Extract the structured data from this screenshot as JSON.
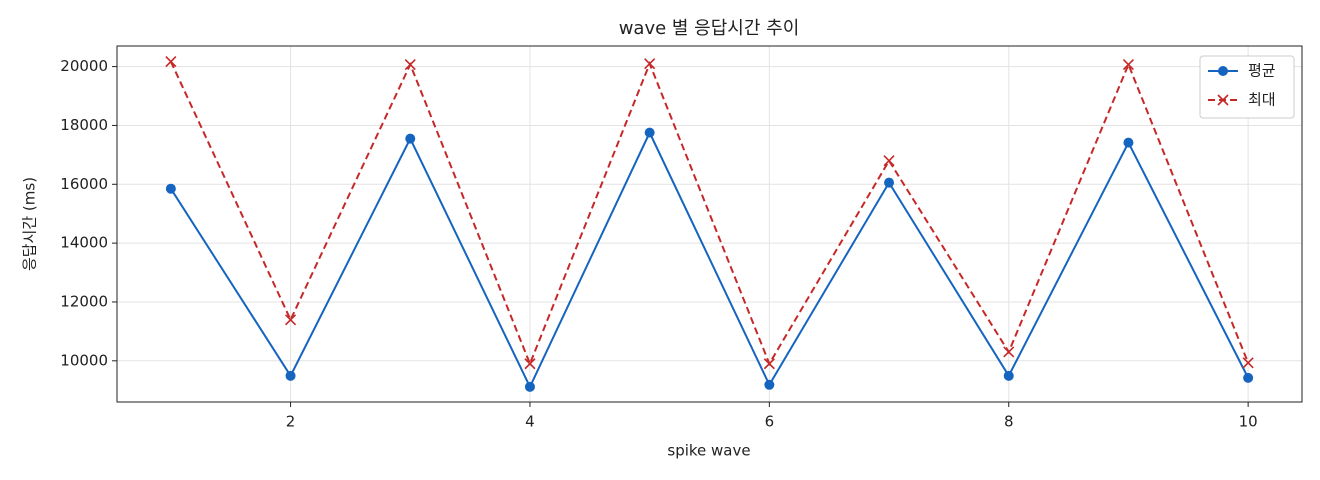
{
  "chart_data": {
    "type": "line",
    "title": "wave 별 응답시간 추이",
    "x_label": "spike wave",
    "y_label": "응답시간 (ms)",
    "x": [
      1,
      2,
      3,
      4,
      5,
      6,
      7,
      8,
      9,
      10
    ],
    "series": [
      {
        "name": "평균",
        "color": "#1565c0",
        "marker": "o",
        "linestyle": "solid",
        "values": [
          15850,
          9490,
          17550,
          9115,
          17755,
          9185,
          16055,
          9490,
          17415,
          9420
        ]
      },
      {
        "name": "최대",
        "color": "#c62828",
        "marker": "x",
        "linestyle": "dashed",
        "values": [
          20170,
          11395,
          20070,
          9900,
          20100,
          9900,
          16800,
          10300,
          20070,
          9930
        ]
      }
    ],
    "xlim": [
      0.55,
      10.45
    ],
    "ylim": [
      8600,
      20700
    ],
    "xticks": [
      2,
      4,
      6,
      8,
      10
    ],
    "yticks": [
      10000,
      12000,
      14000,
      16000,
      18000,
      20000
    ],
    "grid": true,
    "legend": "upper right"
  }
}
